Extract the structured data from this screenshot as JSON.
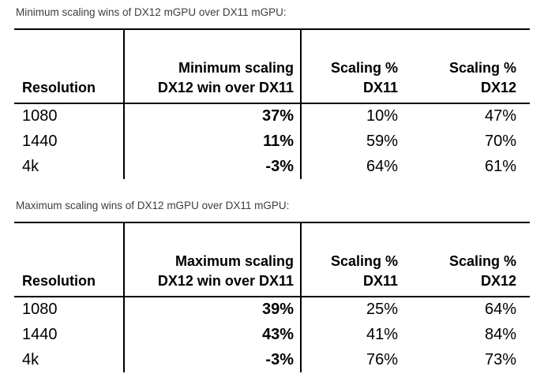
{
  "colors": {
    "background": "#ffffff",
    "table_text": "#000000",
    "caption_text": "#3d3d3d",
    "border": "#000000"
  },
  "tables": [
    {
      "caption": "Minimum scaling wins of DX12 mGPU over DX11 mGPU:",
      "headers": {
        "col1": "Resolution",
        "col2_line1": "Minimum scaling",
        "col2_line2": "DX12 win over DX11",
        "col3_line1": "Scaling %",
        "col3_line2": "DX11",
        "col4_line1": "Scaling %",
        "col4_line2": "DX12"
      },
      "rows": [
        {
          "resolution": "1080",
          "win": "37%",
          "dx11": "10%",
          "dx12": "47%"
        },
        {
          "resolution": "1440",
          "win": "11%",
          "dx11": "59%",
          "dx12": "70%"
        },
        {
          "resolution": "4k",
          "win": "-3%",
          "dx11": "64%",
          "dx12": "61%"
        }
      ]
    },
    {
      "caption": "Maximum scaling wins of DX12 mGPU over DX11 mGPU:",
      "headers": {
        "col1": "Resolution",
        "col2_line1": "Maximum scaling",
        "col2_line2": "DX12 win over DX11",
        "col3_line1": "Scaling %",
        "col3_line2": "DX11",
        "col4_line1": "Scaling %",
        "col4_line2": "DX12"
      },
      "rows": [
        {
          "resolution": "1080",
          "win": "39%",
          "dx11": "25%",
          "dx12": "64%"
        },
        {
          "resolution": "1440",
          "win": "43%",
          "dx11": "41%",
          "dx12": "84%"
        },
        {
          "resolution": "4k",
          "win": "-3%",
          "dx11": "76%",
          "dx12": "73%"
        }
      ]
    }
  ],
  "chart_data": [
    {
      "type": "table",
      "title": "Minimum scaling wins of DX12 mGPU over DX11 mGPU:",
      "columns": [
        "Resolution",
        "Minimum scaling DX12 win over DX11",
        "Scaling % DX11",
        "Scaling % DX12"
      ],
      "rows": [
        [
          "1080",
          "37%",
          "10%",
          "47%"
        ],
        [
          "1440",
          "11%",
          "59%",
          "70%"
        ],
        [
          "4k",
          "-3%",
          "64%",
          "61%"
        ]
      ]
    },
    {
      "type": "table",
      "title": "Maximum scaling wins of DX12 mGPU over DX11 mGPU:",
      "columns": [
        "Resolution",
        "Maximum scaling DX12 win over DX11",
        "Scaling % DX11",
        "Scaling % DX12"
      ],
      "rows": [
        [
          "1080",
          "39%",
          "25%",
          "64%"
        ],
        [
          "1440",
          "43%",
          "41%",
          "84%"
        ],
        [
          "4k",
          "-3%",
          "76%",
          "73%"
        ]
      ]
    }
  ]
}
